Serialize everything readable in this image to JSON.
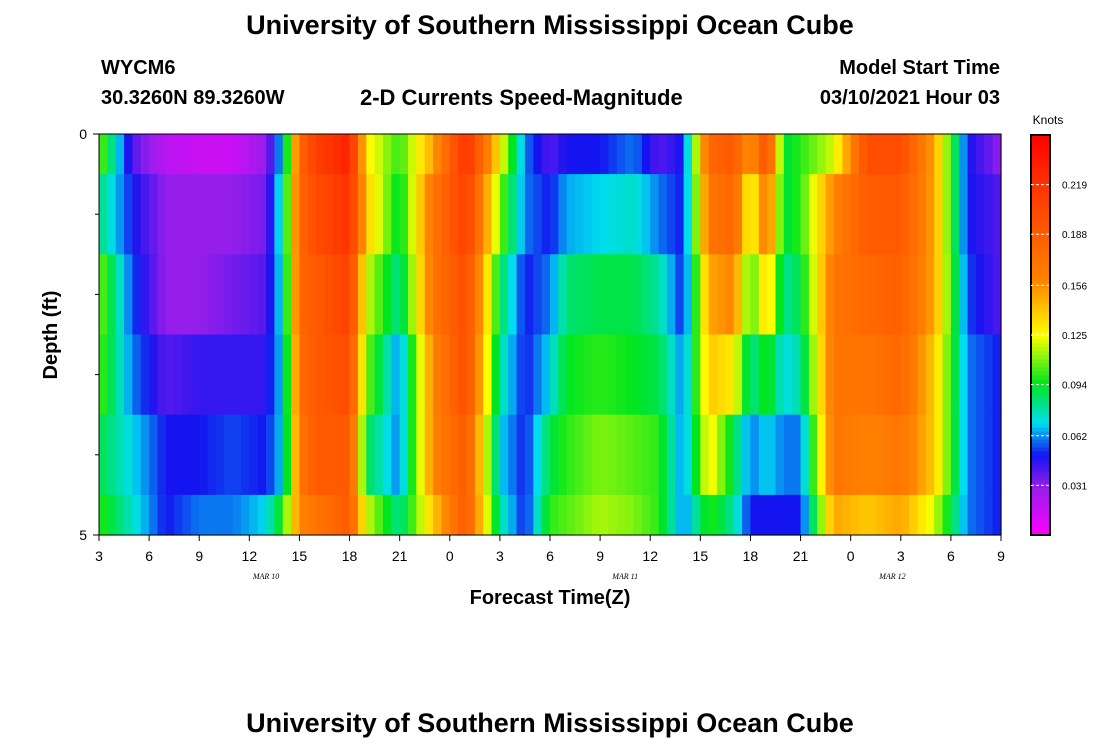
{
  "header": {
    "title": "University of Southern Mississippi Ocean Cube",
    "footer_title": "University of Southern Mississippi Ocean Cube",
    "station": "WYCM6",
    "coords": "30.3260N 89.3260W",
    "model_label": "Model Start Time",
    "model_time": "03/10/2021 Hour 03"
  },
  "chart_data": {
    "type": "heatmap",
    "title": "2-D Currents Speed-Magnitude",
    "xlabel": "Forecast Time(Z)",
    "ylabel": "Depth (ft)",
    "colorbar_label": "Knots",
    "xlim": [
      3,
      57
    ],
    "ylim": [
      0,
      5
    ],
    "x_ticks": [
      {
        "t": 3,
        "label": "3"
      },
      {
        "t": 6,
        "label": "6"
      },
      {
        "t": 9,
        "label": "9"
      },
      {
        "t": 12,
        "label": "12"
      },
      {
        "t": 15,
        "label": "15"
      },
      {
        "t": 18,
        "label": "18"
      },
      {
        "t": 21,
        "label": "21"
      },
      {
        "t": 24,
        "label": "0"
      },
      {
        "t": 27,
        "label": "3"
      },
      {
        "t": 30,
        "label": "6"
      },
      {
        "t": 33,
        "label": "9"
      },
      {
        "t": 36,
        "label": "12"
      },
      {
        "t": 39,
        "label": "15"
      },
      {
        "t": 42,
        "label": "18"
      },
      {
        "t": 45,
        "label": "21"
      },
      {
        "t": 48,
        "label": "0"
      },
      {
        "t": 51,
        "label": "3"
      },
      {
        "t": 54,
        "label": "6"
      },
      {
        "t": 57,
        "label": "9"
      }
    ],
    "date_labels": [
      {
        "t": 13,
        "label": "MAR 10"
      },
      {
        "t": 34.5,
        "label": "MAR 11"
      },
      {
        "t": 50.5,
        "label": "MAR 12"
      }
    ],
    "y_tick_labels": [
      {
        "d": 0,
        "label": "0"
      },
      {
        "d": 5,
        "label": "5"
      }
    ],
    "y_minor_ticks": [
      1,
      2,
      3,
      4
    ],
    "colorbar_range": [
      0,
      0.25
    ],
    "colorbar_ticks": [
      {
        "v": 0.031,
        "label": "0.031"
      },
      {
        "v": 0.062,
        "label": "0.062"
      },
      {
        "v": 0.094,
        "label": "0.094"
      },
      {
        "v": 0.125,
        "label": "0.125"
      },
      {
        "v": 0.156,
        "label": "0.156"
      },
      {
        "v": 0.188,
        "label": "0.188"
      },
      {
        "v": 0.219,
        "label": "0.219"
      }
    ],
    "depth_layers": [
      "0-0.5",
      "0.5-1.5",
      "1.5-2.5",
      "2.5-3.5",
      "3.5-4.5",
      "4.5-5"
    ],
    "time_keyframes": [
      3,
      5,
      7,
      9,
      11,
      13,
      14,
      15,
      16,
      18,
      19,
      21,
      23,
      25,
      27,
      28.5,
      30,
      31,
      33,
      35,
      36.5,
      38,
      39.5,
      41,
      42,
      43,
      44,
      45,
      47,
      49,
      51,
      53,
      55,
      57
    ],
    "profile_values": [
      [
        0.11,
        0.085,
        0.11,
        0.105,
        0.09,
        0.1
      ],
      [
        0.04,
        0.05,
        0.055,
        0.06,
        0.07,
        0.075
      ],
      [
        0.02,
        0.03,
        0.03,
        0.04,
        0.05,
        0.05
      ],
      [
        0.015,
        0.03,
        0.03,
        0.045,
        0.05,
        0.06
      ],
      [
        0.015,
        0.03,
        0.035,
        0.045,
        0.055,
        0.06
      ],
      [
        0.03,
        0.035,
        0.04,
        0.045,
        0.05,
        0.07
      ],
      [
        0.07,
        0.08,
        0.075,
        0.07,
        0.07,
        0.1
      ],
      [
        0.18,
        0.18,
        0.18,
        0.175,
        0.17,
        0.16
      ],
      [
        0.21,
        0.2,
        0.19,
        0.19,
        0.19,
        0.17
      ],
      [
        0.23,
        0.22,
        0.21,
        0.2,
        0.19,
        0.19
      ],
      [
        0.13,
        0.14,
        0.12,
        0.11,
        0.09,
        0.12
      ],
      [
        0.1,
        0.09,
        0.08,
        0.06,
        0.06,
        0.08
      ],
      [
        0.15,
        0.17,
        0.17,
        0.16,
        0.16,
        0.14
      ],
      [
        0.22,
        0.21,
        0.2,
        0.2,
        0.19,
        0.19
      ],
      [
        0.13,
        0.11,
        0.09,
        0.08,
        0.07,
        0.08
      ],
      [
        0.06,
        0.06,
        0.05,
        0.05,
        0.05,
        0.05
      ],
      [
        0.04,
        0.05,
        0.06,
        0.07,
        0.09,
        0.1
      ],
      [
        0.05,
        0.065,
        0.085,
        0.095,
        0.1,
        0.105
      ],
      [
        0.05,
        0.07,
        0.09,
        0.1,
        0.11,
        0.115
      ],
      [
        0.06,
        0.075,
        0.09,
        0.095,
        0.105,
        0.11
      ],
      [
        0.04,
        0.06,
        0.08,
        0.09,
        0.1,
        0.1
      ],
      [
        0.05,
        0.05,
        0.05,
        0.06,
        0.06,
        0.06
      ],
      [
        0.18,
        0.17,
        0.15,
        0.14,
        0.13,
        0.1
      ],
      [
        0.19,
        0.18,
        0.16,
        0.13,
        0.09,
        0.08
      ],
      [
        0.15,
        0.12,
        0.1,
        0.08,
        0.06,
        0.05
      ],
      [
        0.2,
        0.17,
        0.14,
        0.1,
        0.07,
        0.05
      ],
      [
        0.09,
        0.09,
        0.08,
        0.07,
        0.06,
        0.05
      ],
      [
        0.1,
        0.1,
        0.09,
        0.08,
        0.06,
        0.05
      ],
      [
        0.12,
        0.16,
        0.17,
        0.17,
        0.17,
        0.15
      ],
      [
        0.2,
        0.19,
        0.18,
        0.17,
        0.16,
        0.14
      ],
      [
        0.2,
        0.19,
        0.185,
        0.18,
        0.17,
        0.15
      ],
      [
        0.15,
        0.15,
        0.15,
        0.14,
        0.14,
        0.12
      ],
      [
        0.05,
        0.05,
        0.055,
        0.06,
        0.06,
        0.06
      ],
      [
        0.03,
        0.04,
        0.04,
        0.05,
        0.05,
        0.05
      ]
    ]
  }
}
